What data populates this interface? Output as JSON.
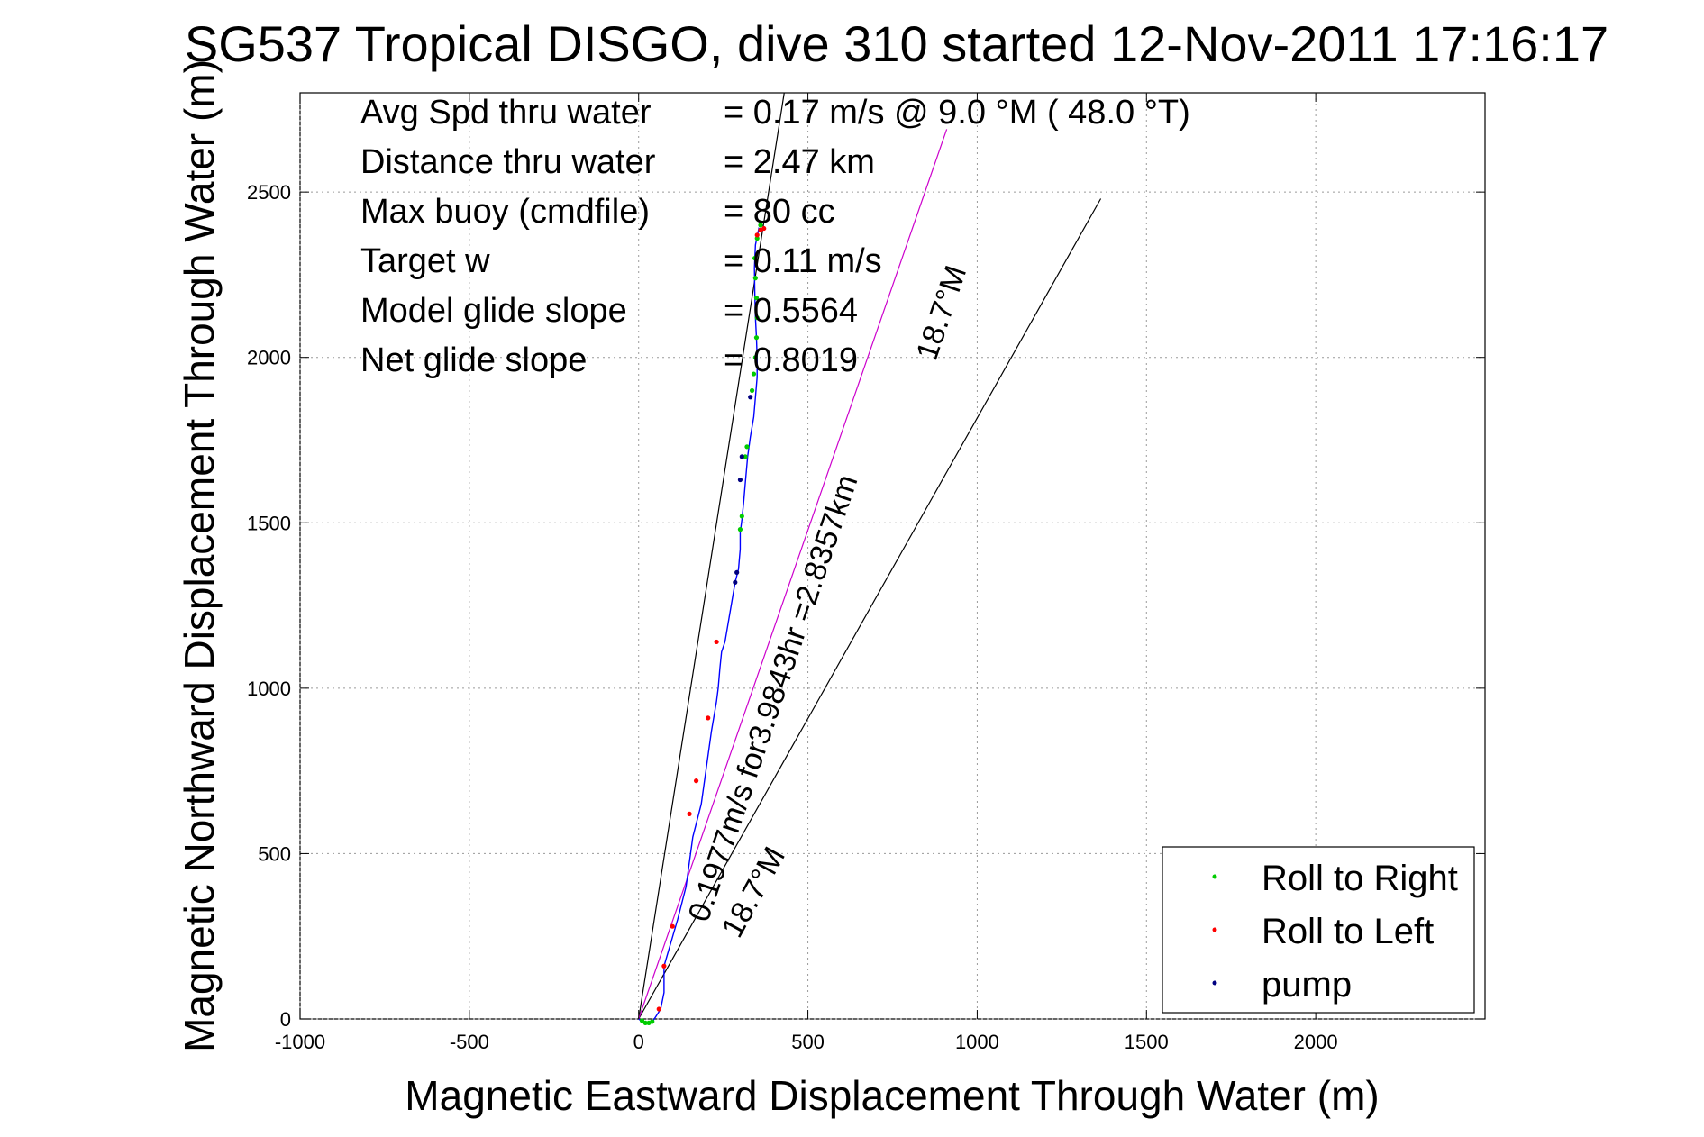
{
  "chart_data": {
    "type": "line",
    "title": "SG537 Tropical DISGO, dive 310 started 12-Nov-2011 17:16:17",
    "xlabel": "Magnetic Eastward Displacement Through Water (m)",
    "ylabel": "Magnetic Northward Displacement Through Water (m)",
    "xlim": [
      -1000,
      2500
    ],
    "ylim": [
      0,
      2800
    ],
    "xticks": [
      -1000,
      -500,
      0,
      500,
      1000,
      1500,
      2000
    ],
    "xtick_labels": [
      "-1000",
      "-500",
      "0",
      "500",
      "1000",
      "1500",
      "2000"
    ],
    "yticks": [
      0,
      500,
      1000,
      1500,
      2000,
      2500
    ],
    "ytick_labels": [
      "0",
      "500",
      "1000",
      "1500",
      "2000",
      "2500"
    ],
    "grid": true,
    "legend_position": "bottom-right",
    "colors": {
      "track": "#0000ff",
      "roll_right": "#00cc00",
      "roll_left": "#ff0000",
      "pump": "#000080",
      "cone_lines": "#000000",
      "magenta_line": "#cc00cc"
    },
    "stats": [
      {
        "label": "Avg Spd thru water",
        "value": "=  0.17 m/s @   9.0 °M ( 48.0 °T)"
      },
      {
        "label": "Distance thru water",
        "value": "=  2.47 km"
      },
      {
        "label": "Max buoy (cmdfile)",
        "value": "= 80 cc"
      },
      {
        "label": "Target w",
        "value": "= 0.11 m/s"
      },
      {
        "label": "Model glide slope",
        "value": "= 0.5564"
      },
      {
        "label": "Net glide slope",
        "value": "= 0.8019"
      }
    ],
    "annotations": [
      {
        "text": "18.7°M",
        "kind": "cone-upper"
      },
      {
        "text": "0.1977m/s for3.9843hr =2.8357km",
        "kind": "along-line"
      },
      {
        "text": "18.7°M",
        "kind": "cone-lower"
      }
    ],
    "series": [
      {
        "name": "track",
        "style": "line",
        "x": [
          0,
          20,
          40,
          65,
          75,
          75,
          95,
          115,
          140,
          160,
          185,
          200,
          215,
          230,
          235,
          240,
          245,
          255,
          265,
          275,
          285,
          295,
          300,
          300,
          305,
          310,
          315,
          322,
          330,
          340,
          345,
          350,
          350,
          348,
          345,
          343,
          342,
          345,
          355,
          365
        ],
        "y": [
          0,
          -15,
          -10,
          30,
          80,
          160,
          230,
          300,
          400,
          550,
          650,
          760,
          870,
          960,
          1000,
          1060,
          1110,
          1140,
          1200,
          1260,
          1320,
          1360,
          1420,
          1470,
          1510,
          1560,
          1620,
          1700,
          1760,
          1820,
          1880,
          1940,
          2000,
          2060,
          2120,
          2200,
          2270,
          2340,
          2390,
          2380
        ]
      },
      {
        "name": "Roll to Right",
        "style": "dots",
        "x": [
          10,
          20,
          30,
          40,
          300,
          305,
          315,
          320,
          335,
          340,
          345,
          348,
          350,
          348,
          345,
          343,
          350,
          360
        ],
        "y": [
          -5,
          -12,
          -12,
          -8,
          1480,
          1520,
          1700,
          1730,
          1900,
          1950,
          2000,
          2060,
          2120,
          2180,
          2240,
          2300,
          2360,
          2400
        ]
      },
      {
        "name": "Roll to Left",
        "style": "dots",
        "x": [
          60,
          75,
          100,
          150,
          170,
          205,
          230,
          350,
          360,
          370
        ],
        "y": [
          30,
          160,
          280,
          620,
          720,
          910,
          1140,
          2370,
          2385,
          2390
        ]
      },
      {
        "name": "pump",
        "style": "dots",
        "x": [
          285,
          290,
          300,
          305,
          330
        ],
        "y": [
          1320,
          1350,
          1630,
          1700,
          1880
        ]
      },
      {
        "name": "cone-left",
        "style": "thin-line",
        "x": [
          0,
          430
        ],
        "y": [
          0,
          2800
        ]
      },
      {
        "name": "cone-right",
        "style": "thin-line",
        "x": [
          0,
          1365
        ],
        "y": [
          0,
          2480
        ]
      },
      {
        "name": "magenta-line",
        "style": "thin-line",
        "x": [
          0,
          910
        ],
        "y": [
          0,
          2690
        ]
      }
    ]
  },
  "legend": {
    "items": [
      {
        "label": "Roll to Right",
        "color": "#00cc00"
      },
      {
        "label": "Roll to Left",
        "color": "#ff0000"
      },
      {
        "label": "pump",
        "color": "#000080"
      }
    ]
  }
}
